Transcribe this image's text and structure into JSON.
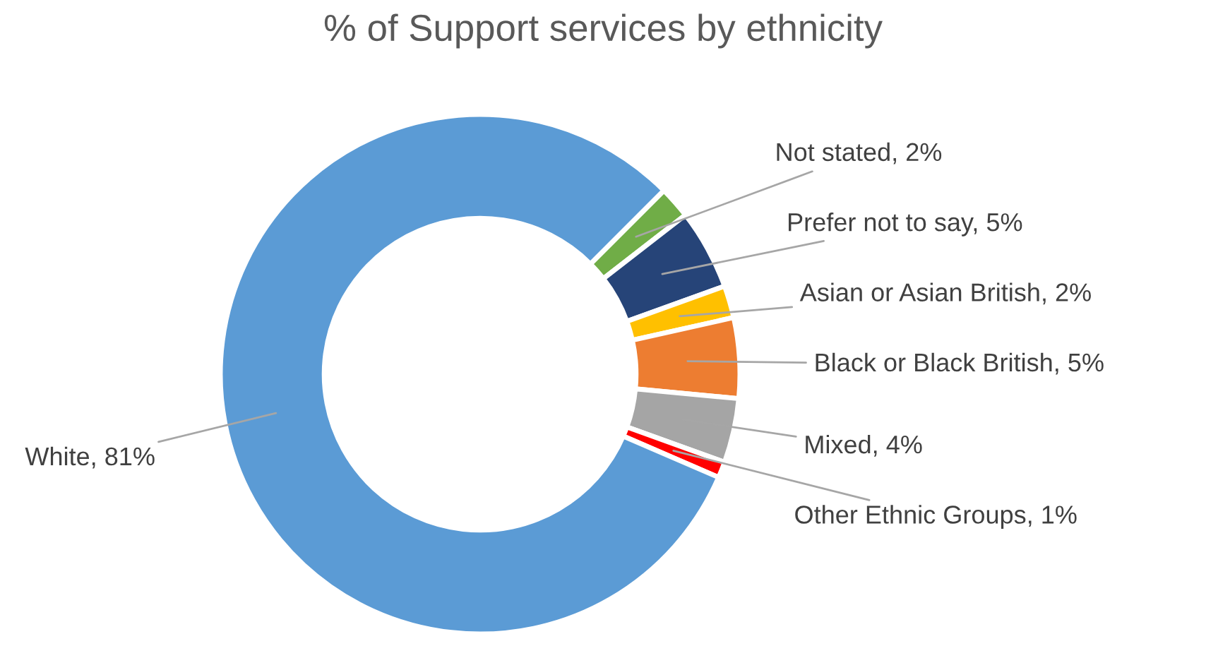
{
  "chart_data": {
    "type": "donut",
    "title": "% of Support services by ethnicity",
    "categories": [
      "Not stated",
      "Prefer not to say",
      "Asian or Asian British",
      "Black or Black British",
      "Mixed",
      "Other Ethnic Groups",
      "White"
    ],
    "values": [
      2,
      5,
      2,
      5,
      4,
      1,
      81
    ],
    "colors": [
      "#70ad47",
      "#264478",
      "#ffc000",
      "#ed7d31",
      "#a5a5a5",
      "#ff0000",
      "#5b9bd5"
    ],
    "value_labels": [
      "2%",
      "5%",
      "2%",
      "5%",
      "4%",
      "1%",
      "81%"
    ],
    "legend": false
  }
}
